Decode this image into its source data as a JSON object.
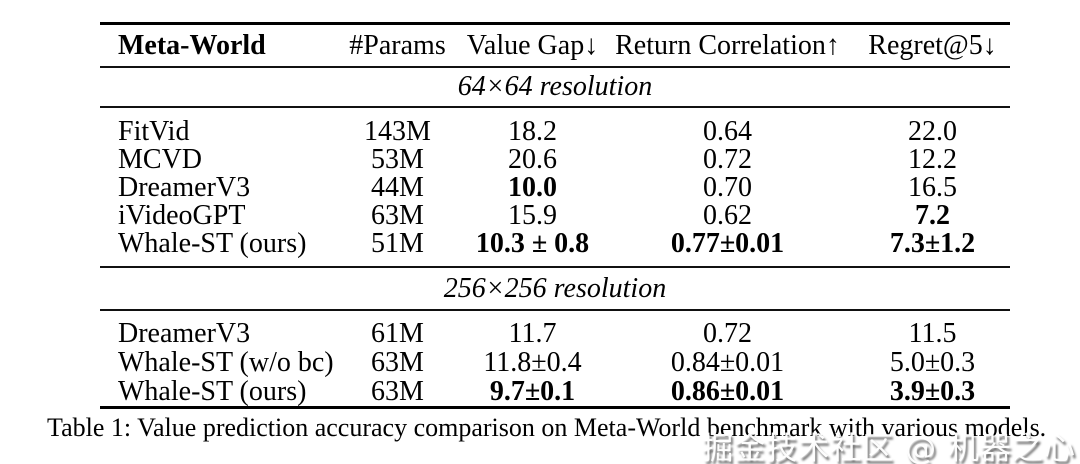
{
  "table": {
    "columns": {
      "model": "Meta-World",
      "params": "#Params",
      "value_gap": "Value Gap↓",
      "return_corr": "Return Correlation↑",
      "regret": "Regret@5↓"
    },
    "sections": [
      {
        "title": "64×64 resolution",
        "rows": [
          {
            "model": "FitVid",
            "params": "143M",
            "value_gap": "18.2",
            "return_corr": "0.64",
            "regret": "22.0"
          },
          {
            "model": "MCVD",
            "params": "53M",
            "value_gap": "20.6",
            "return_corr": "0.72",
            "regret": "12.2"
          },
          {
            "model": "DreamerV3",
            "params": "44M",
            "value_gap": "10.0",
            "return_corr": "0.70",
            "regret": "16.5"
          },
          {
            "model": "iVideoGPT",
            "params": "63M",
            "value_gap": "15.9",
            "return_corr": "0.62",
            "regret": "7.2"
          },
          {
            "model": "Whale-ST (ours)",
            "params": "51M",
            "value_gap": "10.3 ± 0.8",
            "return_corr": "0.77±0.01",
            "regret": "7.3±1.2"
          }
        ]
      },
      {
        "title": "256×256 resolution",
        "rows": [
          {
            "model": "DreamerV3",
            "params": "61M",
            "value_gap": "11.7",
            "return_corr": "0.72",
            "regret": "11.5"
          },
          {
            "model": "Whale-ST (w/o bc)",
            "params": "63M",
            "value_gap": "11.8±0.4",
            "return_corr": "0.84±0.01",
            "regret": "5.0±0.3"
          },
          {
            "model": "Whale-ST (ours)",
            "params": "63M",
            "value_gap": "9.7±0.1",
            "return_corr": "0.86±0.01",
            "regret": "3.9±0.3"
          }
        ]
      }
    ]
  },
  "caption": "Table 1: Value prediction accuracy comparison on Meta-World benchmark with various models.",
  "watermark": "掘金技术社区 @ 机器之心",
  "colors": {
    "text": "#000000",
    "background": "#ffffff"
  }
}
